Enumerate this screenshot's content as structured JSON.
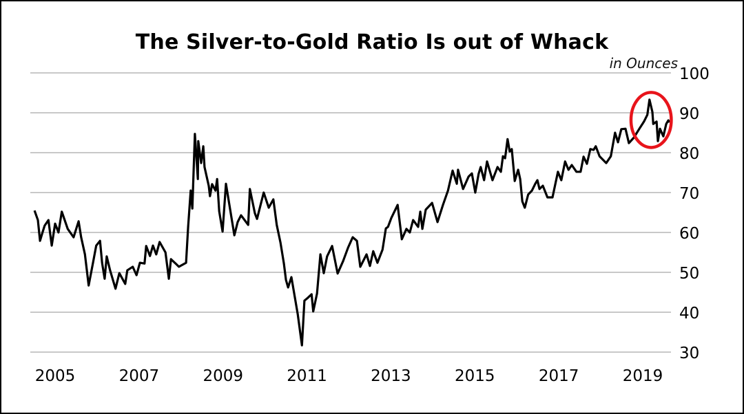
{
  "chart_data": {
    "type": "line",
    "title": "The Silver-to-Gold Ratio Is out of Whack",
    "unit_label": "in Ounces",
    "xlabel": "",
    "ylabel": "",
    "ylim": [
      30,
      100
    ],
    "xlim": [
      2004.5,
      2019.75
    ],
    "y_ticks": [
      30,
      40,
      50,
      60,
      70,
      80,
      90,
      100
    ],
    "x_ticks": [
      2005,
      2007,
      2009,
      2011,
      2013,
      2015,
      2017,
      2019
    ],
    "y_axis_side": "right",
    "grid": "horizontal",
    "line_color": "#000000",
    "highlight": {
      "shape": "ellipse",
      "color": "#e8141b",
      "center": [
        2019.2,
        88.2
      ],
      "half_width_years": 0.48,
      "half_height": 6.9
    },
    "series": [
      {
        "x": [
          2004.51,
          2004.59,
          2004.64,
          2004.7,
          2004.75,
          2004.84,
          2004.92,
          2005.0,
          2005.08,
          2005.16,
          2005.3,
          2005.44,
          2005.56,
          2005.62,
          2005.71,
          2005.8,
          2005.9,
          2005.98,
          2006.07,
          2006.12,
          2006.18,
          2006.23,
          2006.31,
          2006.44,
          2006.53,
          2006.67,
          2006.72,
          2006.85,
          2006.94,
          2007.02,
          2007.13,
          2007.17,
          2007.26,
          2007.33,
          2007.41,
          2007.49,
          2007.63,
          2007.71,
          2007.76,
          2007.87,
          2007.95,
          2008.12,
          2008.17,
          2008.23,
          2008.27,
          2008.33,
          2008.4,
          2008.41,
          2008.48,
          2008.53,
          2008.56,
          2008.66,
          2008.69,
          2008.74,
          2008.82,
          2008.86,
          2008.91,
          2008.99,
          2009.07,
          2009.15,
          2009.27,
          2009.35,
          2009.43,
          2009.6,
          2009.64,
          2009.76,
          2009.81,
          2009.97,
          2010.09,
          2010.2,
          2010.28,
          2010.37,
          2010.45,
          2010.5,
          2010.55,
          2010.63,
          2010.78,
          2010.88,
          2010.94,
          2011.02,
          2011.11,
          2011.15,
          2011.24,
          2011.32,
          2011.4,
          2011.48,
          2011.6,
          2011.73,
          2011.86,
          2011.98,
          2012.09,
          2012.19,
          2012.27,
          2012.42,
          2012.5,
          2012.58,
          2012.68,
          2012.8,
          2012.88,
          2012.93,
          2013.01,
          2013.16,
          2013.26,
          2013.37,
          2013.45,
          2013.53,
          2013.65,
          2013.7,
          2013.75,
          2013.83,
          2013.98,
          2014.11,
          2014.24,
          2014.36,
          2014.47,
          2014.57,
          2014.6,
          2014.72,
          2014.85,
          2014.93,
          2015.01,
          2015.09,
          2015.14,
          2015.22,
          2015.29,
          2015.42,
          2015.54,
          2015.62,
          2015.67,
          2015.72,
          2015.78,
          2015.83,
          2015.88,
          2015.95,
          2016.03,
          2016.08,
          2016.13,
          2016.19,
          2016.27,
          2016.36,
          2016.44,
          2016.49,
          2016.54,
          2016.62,
          2016.73,
          2016.85,
          2016.98,
          2017.06,
          2017.15,
          2017.23,
          2017.31,
          2017.42,
          2017.52,
          2017.59,
          2017.67,
          2017.75,
          2017.83,
          2017.88,
          2017.97,
          2018.13,
          2018.24,
          2018.34,
          2018.41,
          2018.49,
          2018.59,
          2018.67,
          2018.79,
          2018.92,
          2019.03,
          2019.11,
          2019.16,
          2019.23,
          2019.25,
          2019.33,
          2019.36,
          2019.41,
          2019.49,
          2019.56,
          2019.61,
          2019.64
        ],
        "y": [
          65.5,
          63.1,
          57.9,
          60.0,
          61.7,
          63.1,
          56.7,
          62.2,
          60.0,
          65.2,
          60.9,
          58.8,
          62.8,
          58.8,
          54.5,
          46.7,
          52.2,
          56.7,
          57.9,
          52.4,
          48.4,
          54.0,
          50.5,
          45.9,
          49.8,
          47.1,
          50.5,
          51.4,
          49.3,
          52.4,
          52.2,
          56.6,
          54.1,
          56.7,
          54.5,
          57.6,
          55.0,
          48.4,
          53.3,
          52.2,
          51.4,
          52.4,
          61.4,
          70.5,
          66.0,
          84.7,
          73.4,
          82.9,
          77.4,
          81.6,
          76.4,
          71.7,
          69.1,
          72.1,
          70.5,
          73.4,
          65.3,
          60.2,
          72.2,
          67.0,
          59.3,
          62.6,
          64.3,
          61.9,
          70.9,
          64.8,
          63.4,
          70.0,
          66.2,
          68.3,
          61.9,
          57.4,
          52.2,
          48.1,
          46.2,
          48.8,
          39.5,
          31.7,
          42.9,
          43.6,
          44.5,
          40.2,
          44.7,
          54.5,
          49.8,
          54.0,
          56.6,
          49.7,
          52.8,
          56.2,
          58.8,
          57.9,
          51.4,
          54.5,
          51.6,
          55.3,
          52.4,
          55.7,
          61.0,
          61.4,
          63.6,
          66.9,
          58.3,
          60.9,
          60.0,
          63.1,
          61.4,
          65.2,
          60.9,
          65.7,
          67.4,
          62.6,
          66.9,
          70.5,
          75.5,
          72.2,
          75.7,
          70.9,
          74.0,
          74.8,
          70.0,
          74.7,
          76.4,
          73.1,
          77.8,
          73.1,
          76.4,
          75.2,
          79.1,
          78.6,
          83.4,
          80.3,
          80.9,
          72.9,
          75.7,
          73.4,
          67.8,
          66.2,
          69.5,
          70.5,
          72.2,
          73.1,
          70.9,
          71.7,
          68.8,
          68.8,
          75.2,
          73.1,
          77.8,
          75.7,
          76.9,
          75.2,
          75.2,
          79.0,
          77.2,
          80.9,
          80.7,
          81.6,
          79.1,
          77.4,
          79.1,
          85.0,
          82.6,
          85.9,
          86.0,
          82.4,
          83.8,
          86.0,
          87.8,
          89.5,
          93.3,
          90.2,
          87.2,
          87.8,
          82.9,
          86.0,
          84.1,
          87.2,
          88.1,
          87.6
        ]
      }
    ]
  }
}
